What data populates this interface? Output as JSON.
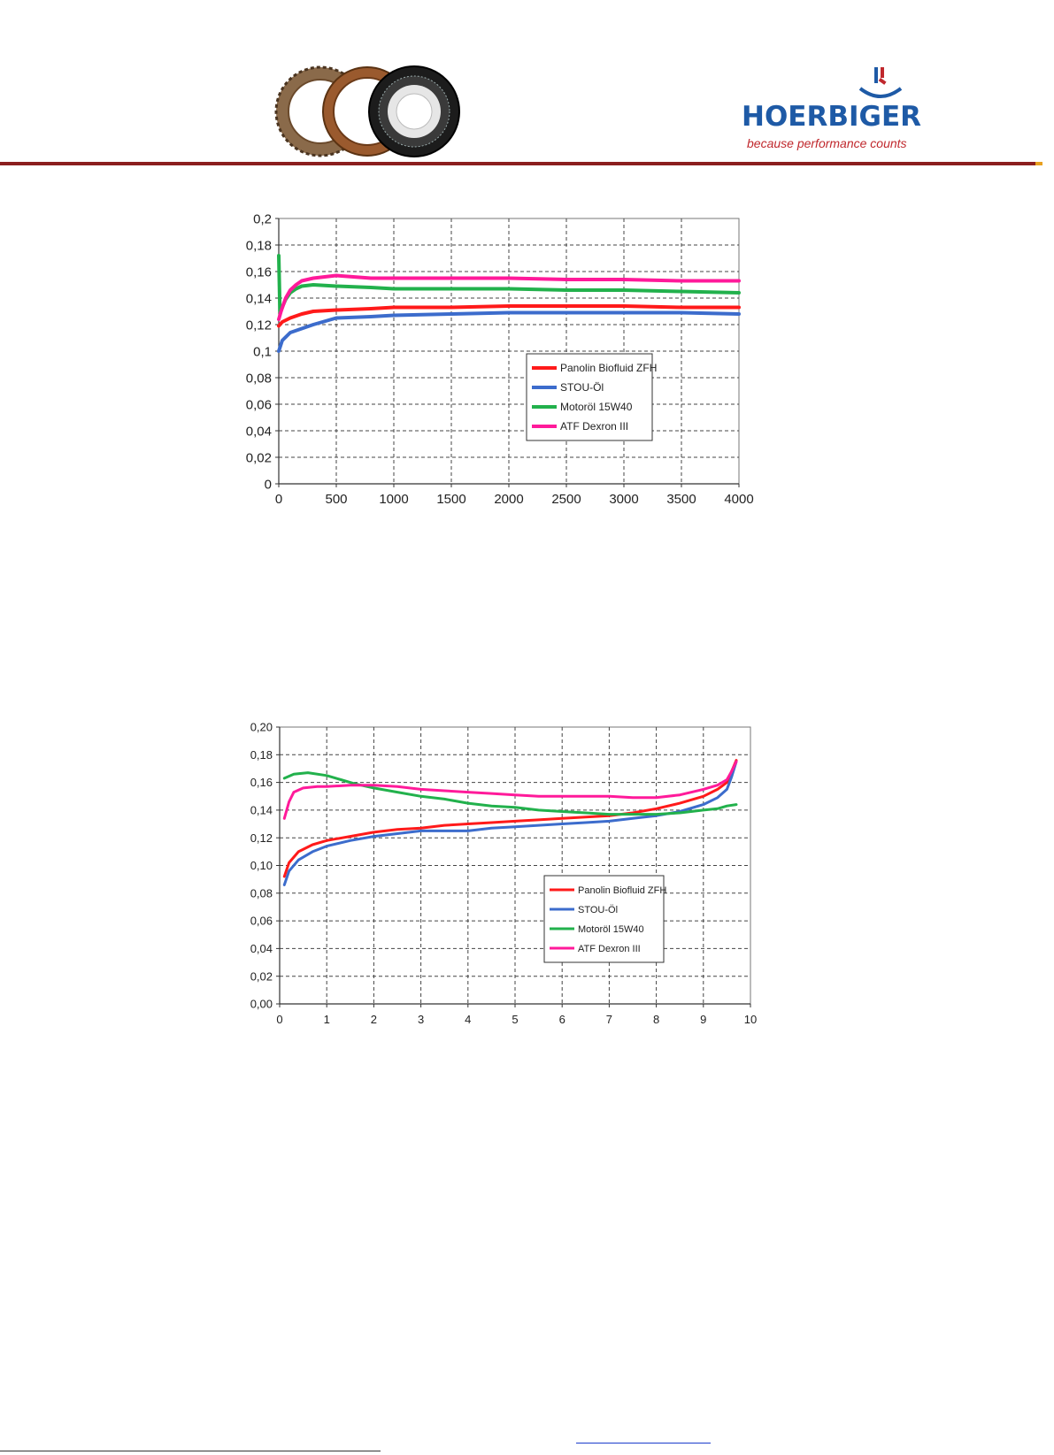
{
  "logo": {
    "name": "HOERBIGER",
    "tagline": "because performance counts"
  },
  "icons": [
    "clutch-discs-icon",
    "hoerbiger-logo-mark-icon"
  ],
  "colors": {
    "rule": "#8b1e1e",
    "brand_blue": "#1e5aa6",
    "brand_red": "#c0282d"
  },
  "chart_data": [
    {
      "type": "line",
      "xlim": [
        0,
        4000
      ],
      "ylim": [
        0,
        0.2
      ],
      "xticks": [
        "0",
        "500",
        "1000",
        "1500",
        "2000",
        "2500",
        "3000",
        "3500",
        "4000"
      ],
      "yticks": [
        "0",
        "0,02",
        "0,04",
        "0,06",
        "0,08",
        "0,1",
        "0,12",
        "0,14",
        "0,16",
        "0,18",
        "0,2"
      ],
      "grid": true,
      "legend_position": "lower-right",
      "series": [
        {
          "name": "Panolin Biofluid ZFH",
          "color": "#ff1a1a",
          "x": [
            0,
            30,
            100,
            200,
            300,
            500,
            800,
            1000,
            1500,
            2000,
            2500,
            3000,
            3500,
            4000
          ],
          "y": [
            0.119,
            0.122,
            0.125,
            0.128,
            0.13,
            0.131,
            0.132,
            0.133,
            0.133,
            0.134,
            0.134,
            0.134,
            0.133,
            0.133
          ]
        },
        {
          "name": "STOU-Öl",
          "color": "#3c6ccc",
          "x": [
            0,
            30,
            100,
            200,
            300,
            500,
            800,
            1000,
            1500,
            2000,
            2500,
            3000,
            3500,
            4000
          ],
          "y": [
            0.1,
            0.108,
            0.114,
            0.117,
            0.12,
            0.125,
            0.126,
            0.127,
            0.128,
            0.129,
            0.129,
            0.129,
            0.129,
            0.128
          ]
        },
        {
          "name": "Motoröl 15W40",
          "color": "#22b14c",
          "x": [
            0,
            10,
            30,
            60,
            100,
            150,
            200,
            300,
            500,
            800,
            1000,
            1500,
            2000,
            2500,
            3000,
            3500,
            4000
          ],
          "y": [
            0.172,
            0.13,
            0.133,
            0.139,
            0.144,
            0.147,
            0.149,
            0.15,
            0.149,
            0.148,
            0.147,
            0.147,
            0.147,
            0.146,
            0.146,
            0.145,
            0.144
          ]
        },
        {
          "name": "ATF Dexron III",
          "color": "#ff1a9a",
          "x": [
            0,
            20,
            60,
            100,
            150,
            200,
            300,
            500,
            800,
            1000,
            1500,
            2000,
            2500,
            3000,
            3500,
            4000
          ],
          "y": [
            0.124,
            0.13,
            0.14,
            0.146,
            0.15,
            0.153,
            0.155,
            0.157,
            0.155,
            0.155,
            0.155,
            0.155,
            0.154,
            0.154,
            0.153,
            0.153
          ]
        }
      ]
    },
    {
      "type": "line",
      "xlim": [
        0,
        10
      ],
      "ylim": [
        0,
        0.2
      ],
      "xticks": [
        "0",
        "1",
        "2",
        "3",
        "4",
        "5",
        "6",
        "7",
        "8",
        "9",
        "10"
      ],
      "yticks": [
        "0,00",
        "0,02",
        "0,04",
        "0,06",
        "0,08",
        "0,10",
        "0,12",
        "0,14",
        "0,16",
        "0,18",
        "0,20"
      ],
      "grid": true,
      "legend_position": "lower-right",
      "series": [
        {
          "name": "Panolin Biofluid ZFH",
          "color": "#ff1a1a",
          "x": [
            0.1,
            0.2,
            0.4,
            0.7,
            1,
            1.5,
            2,
            2.5,
            3,
            3.5,
            4,
            4.5,
            5,
            5.5,
            6,
            6.5,
            7,
            7.5,
            8,
            8.5,
            9,
            9.3,
            9.5,
            9.6,
            9.7
          ],
          "y": [
            0.092,
            0.102,
            0.11,
            0.115,
            0.118,
            0.121,
            0.124,
            0.126,
            0.127,
            0.129,
            0.13,
            0.131,
            0.132,
            0.133,
            0.134,
            0.135,
            0.136,
            0.138,
            0.141,
            0.145,
            0.15,
            0.155,
            0.16,
            0.168,
            0.176
          ]
        },
        {
          "name": "STOU-Öl",
          "color": "#3c6ccc",
          "x": [
            0.1,
            0.2,
            0.4,
            0.7,
            1,
            1.5,
            2,
            2.5,
            3,
            3.5,
            4,
            4.5,
            5,
            5.5,
            6,
            6.5,
            7,
            7.5,
            8,
            8.5,
            9,
            9.3,
            9.5,
            9.6,
            9.7
          ],
          "y": [
            0.086,
            0.096,
            0.104,
            0.11,
            0.114,
            0.118,
            0.121,
            0.123,
            0.125,
            0.125,
            0.125,
            0.127,
            0.128,
            0.129,
            0.13,
            0.131,
            0.132,
            0.134,
            0.136,
            0.139,
            0.144,
            0.149,
            0.155,
            0.164,
            0.175
          ]
        },
        {
          "name": "Motoröl 15W40",
          "color": "#22b14c",
          "x": [
            0.1,
            0.3,
            0.6,
            1,
            1.3,
            1.6,
            2,
            2.5,
            3,
            3.5,
            4,
            4.5,
            5,
            5.5,
            6,
            6.5,
            7,
            7.5,
            8,
            8.5,
            9,
            9.3,
            9.5,
            9.7
          ],
          "y": [
            0.163,
            0.166,
            0.167,
            0.165,
            0.162,
            0.159,
            0.156,
            0.153,
            0.15,
            0.148,
            0.145,
            0.143,
            0.142,
            0.14,
            0.139,
            0.138,
            0.137,
            0.137,
            0.137,
            0.138,
            0.14,
            0.141,
            0.143,
            0.144
          ]
        },
        {
          "name": "ATF Dexron III",
          "color": "#ff1a9a",
          "x": [
            0.1,
            0.2,
            0.3,
            0.5,
            0.8,
            1,
            1.5,
            2,
            2.5,
            3,
            3.5,
            4,
            4.5,
            5,
            5.5,
            6,
            6.5,
            7,
            7.5,
            8,
            8.5,
            9,
            9.3,
            9.5,
            9.6,
            9.7
          ],
          "y": [
            0.134,
            0.146,
            0.153,
            0.156,
            0.157,
            0.157,
            0.158,
            0.158,
            0.157,
            0.155,
            0.154,
            0.153,
            0.152,
            0.151,
            0.15,
            0.15,
            0.15,
            0.15,
            0.149,
            0.149,
            0.151,
            0.155,
            0.158,
            0.162,
            0.168,
            0.175
          ]
        }
      ]
    }
  ]
}
